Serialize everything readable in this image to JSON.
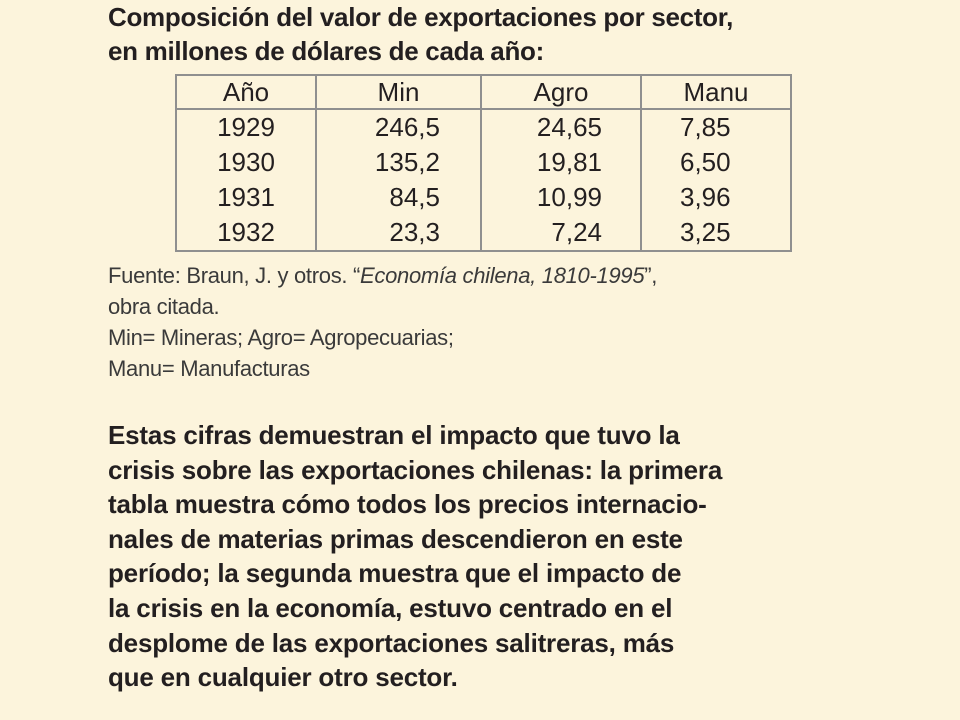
{
  "title": {
    "line1": "Composición del valor de exportaciones por sector,",
    "line2": "en millones de dólares de cada año:"
  },
  "table": {
    "headers": [
      "Año",
      "Min",
      "Agro",
      "Manu"
    ],
    "rows": [
      [
        "1929",
        "246,5",
        "24,65",
        "7,85"
      ],
      [
        "1930",
        "135,2",
        "19,81",
        "6,50"
      ],
      [
        "1931",
        "84,5",
        "10,99",
        "3,96"
      ],
      [
        "1932",
        "23,3",
        "7,24",
        "3,25"
      ]
    ]
  },
  "source": {
    "prefix": "Fuente: Braun, J. y otros. “",
    "work": "Economía chilena, 1810-1995",
    "suffix": "”,",
    "line2": "obra citada.",
    "line3": "Min= Mineras; Agro= Agropecuarias;",
    "line4": "Manu= Manufacturas"
  },
  "paragraph": [
    "Estas cifras demuestran el impacto que tuvo la",
    "crisis sobre las exportaciones chilenas: la primera",
    "tabla muestra cómo todos los precios internacio-",
    "nales de materias primas descendieron en este",
    "período; la segunda muestra que el impacto de",
    "la crisis en la economía, estuvo centrado en el",
    "desplome de las exportaciones salitreras, más",
    "que en cualquier otro sector."
  ]
}
